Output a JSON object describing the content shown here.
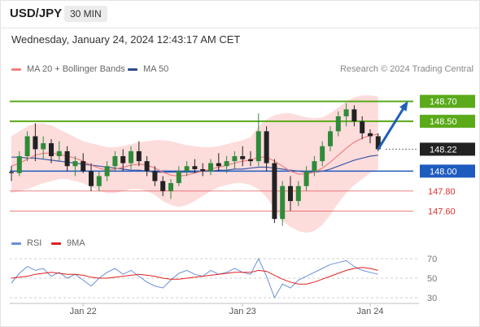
{
  "header": {
    "symbol": "USD/JPY",
    "timeframe": "30 MIN"
  },
  "datetime": "Wednesday, January 24, 2024 12:43:17 AM CET",
  "credit": "Research © 2024 Trading Central",
  "legend": {
    "ma20_label": "MA 20 + Bollinger Bands",
    "ma20_color": "#f08080",
    "ma50_label": "MA 50",
    "ma50_color": "#2e4a8c"
  },
  "rsi_legend": {
    "rsi_label": "RSI",
    "rsi_color": "#6a8fd8",
    "ma9_label": "9MA",
    "ma9_color": "#e02020"
  },
  "colors": {
    "resistance": "#5aaa1a",
    "support_primary": "#1e5bbf",
    "support_secondary": "#e03030",
    "bull_candle": "#2e8b3a",
    "bear_candle": "#222222",
    "bollinger_fill": "#fdd6d6",
    "arrow": "#2060b8",
    "current_price_bg": "#222222"
  },
  "chart_data": [
    {
      "type": "candlestick",
      "ylim": [
        147.35,
        148.95
      ],
      "x_ticks": [
        "Jan 22",
        "Jan 23",
        "Jan 24"
      ],
      "x_tick_index": [
        9,
        29,
        45
      ],
      "candles": [
        [
          147.99,
          148.05,
          147.9,
          147.98
        ],
        [
          147.98,
          148.2,
          147.95,
          148.15
        ],
        [
          148.15,
          148.4,
          148.1,
          148.35
        ],
        [
          148.35,
          148.48,
          148.1,
          148.22
        ],
        [
          148.22,
          148.35,
          148.12,
          148.28
        ],
        [
          148.28,
          148.32,
          148.08,
          148.15
        ],
        [
          148.15,
          148.3,
          148.1,
          148.2
        ],
        [
          148.2,
          148.25,
          148.0,
          148.05
        ],
        [
          148.05,
          148.15,
          147.95,
          148.1
        ],
        [
          148.1,
          148.18,
          147.98,
          148.0
        ],
        [
          148.0,
          148.08,
          147.8,
          147.85
        ],
        [
          147.85,
          148.0,
          147.8,
          147.95
        ],
        [
          147.95,
          148.1,
          147.9,
          148.05
        ],
        [
          148.05,
          148.2,
          148.0,
          148.15
        ],
        [
          148.15,
          148.22,
          148.0,
          148.08
        ],
        [
          148.08,
          148.25,
          148.02,
          148.2
        ],
        [
          148.2,
          148.3,
          148.05,
          148.1
        ],
        [
          148.1,
          148.15,
          147.95,
          148.0
        ],
        [
          148.0,
          148.05,
          147.85,
          147.9
        ],
        [
          147.9,
          147.95,
          147.75,
          147.8
        ],
        [
          147.8,
          147.92,
          147.72,
          147.88
        ],
        [
          147.88,
          148.05,
          147.85,
          148.0
        ],
        [
          148.0,
          148.1,
          147.95,
          148.05
        ],
        [
          148.05,
          148.12,
          147.98,
          148.02
        ],
        [
          148.02,
          148.08,
          147.95,
          148.0
        ],
        [
          148.0,
          148.12,
          147.96,
          148.08
        ],
        [
          148.08,
          148.18,
          148.0,
          148.05
        ],
        [
          148.05,
          148.15,
          147.98,
          148.1
        ],
        [
          148.1,
          148.2,
          148.02,
          148.15
        ],
        [
          148.15,
          148.25,
          148.05,
          148.12
        ],
        [
          148.12,
          148.2,
          148.05,
          148.1
        ],
        [
          148.1,
          148.58,
          148.05,
          148.4
        ],
        [
          148.4,
          148.45,
          148.0,
          148.08
        ],
        [
          148.08,
          148.12,
          147.48,
          147.52
        ],
        [
          147.52,
          147.9,
          147.45,
          147.85
        ],
        [
          147.85,
          147.95,
          147.6,
          147.7
        ],
        [
          147.7,
          147.9,
          147.65,
          147.85
        ],
        [
          147.85,
          148.05,
          147.8,
          148.0
        ],
        [
          148.0,
          148.15,
          147.95,
          148.1
        ],
        [
          148.1,
          148.3,
          148.05,
          148.25
        ],
        [
          148.25,
          148.45,
          148.2,
          148.4
        ],
        [
          148.4,
          148.6,
          148.35,
          148.55
        ],
        [
          148.55,
          148.68,
          148.45,
          148.62
        ],
        [
          148.62,
          148.66,
          148.45,
          148.5
        ],
        [
          148.5,
          148.55,
          148.32,
          148.38
        ],
        [
          148.38,
          148.42,
          148.28,
          148.35
        ],
        [
          148.35,
          148.38,
          148.2,
          148.22
        ]
      ],
      "ma20": [
        148.05,
        148.08,
        148.12,
        148.16,
        148.18,
        148.18,
        148.17,
        148.15,
        148.13,
        148.1,
        148.06,
        148.03,
        148.01,
        148.02,
        148.04,
        148.06,
        148.07,
        148.06,
        148.03,
        147.99,
        147.96,
        147.95,
        147.96,
        147.98,
        148.0,
        148.02,
        148.04,
        148.06,
        148.08,
        148.1,
        148.11,
        148.14,
        148.14,
        148.1,
        148.05,
        148.0,
        147.97,
        147.97,
        147.99,
        148.03,
        148.09,
        148.16,
        148.23,
        148.29,
        148.33,
        148.36,
        148.37
      ],
      "ma50": [
        148.14,
        148.14,
        148.13,
        148.13,
        148.12,
        148.11,
        148.1,
        148.09,
        148.08,
        148.07,
        148.06,
        148.05,
        148.04,
        148.03,
        148.02,
        148.01,
        148.01,
        148.0,
        147.99,
        147.99,
        147.99,
        147.99,
        147.99,
        147.99,
        148.0,
        148.0,
        148.01,
        148.01,
        148.02,
        148.02,
        148.03,
        148.04,
        148.04,
        148.03,
        148.02,
        148.01,
        148.0,
        147.99,
        147.99,
        148.0,
        148.02,
        148.05,
        148.08,
        148.11,
        148.13,
        148.15,
        148.16
      ],
      "bollinger_upper": [
        148.35,
        148.4,
        148.45,
        148.48,
        148.48,
        148.46,
        148.42,
        148.38,
        148.34,
        148.3,
        148.28,
        148.26,
        148.24,
        148.24,
        148.25,
        148.27,
        148.29,
        148.3,
        148.31,
        148.31,
        148.3,
        148.28,
        148.26,
        148.25,
        148.24,
        148.24,
        148.25,
        148.27,
        148.29,
        148.31,
        148.34,
        148.45,
        148.52,
        148.56,
        148.58,
        148.58,
        148.56,
        148.54,
        148.53,
        148.54,
        148.58,
        148.64,
        148.7,
        148.74,
        148.76,
        148.76,
        148.75
      ],
      "bollinger_lower": [
        147.78,
        147.8,
        147.82,
        147.85,
        147.88,
        147.9,
        147.92,
        147.92,
        147.9,
        147.88,
        147.84,
        147.8,
        147.78,
        147.78,
        147.8,
        147.82,
        147.82,
        147.8,
        147.76,
        147.7,
        147.66,
        147.64,
        147.66,
        147.7,
        147.75,
        147.8,
        147.84,
        147.86,
        147.88,
        147.88,
        147.86,
        147.82,
        147.74,
        147.62,
        147.5,
        147.44,
        147.4,
        147.38,
        147.4,
        147.46,
        147.56,
        147.68,
        147.78,
        147.86,
        147.92,
        147.98,
        148.02
      ],
      "levels": [
        {
          "label": "148.70",
          "value": 148.7,
          "kind": "resistance"
        },
        {
          "label": "148.50",
          "value": 148.5,
          "kind": "resistance"
        },
        {
          "label": "148.22",
          "value": 148.22,
          "kind": "current"
        },
        {
          "label": "148.00",
          "value": 148.0,
          "kind": "pivot"
        },
        {
          "label": "147.80",
          "value": 147.8,
          "kind": "support"
        },
        {
          "label": "147.60",
          "value": 147.6,
          "kind": "support"
        }
      ],
      "target_arrow": {
        "from_index": 46,
        "from_value": 148.22,
        "to_index": 50,
        "to_value": 148.7
      }
    },
    {
      "type": "line",
      "ylim": [
        25,
        75
      ],
      "y_ticks": [
        "70",
        "50",
        "30"
      ],
      "series": [
        {
          "name": "RSI",
          "values": [
            45,
            55,
            62,
            58,
            60,
            52,
            56,
            50,
            54,
            48,
            42,
            50,
            56,
            60,
            54,
            58,
            52,
            46,
            42,
            40,
            48,
            55,
            58,
            54,
            52,
            58,
            54,
            56,
            60,
            56,
            54,
            70,
            52,
            30,
            44,
            40,
            48,
            52,
            56,
            60,
            64,
            66,
            68,
            62,
            58,
            56,
            54
          ]
        },
        {
          "name": "9MA",
          "values": [
            50,
            51,
            52,
            54,
            55,
            56,
            55,
            54,
            54,
            53,
            51,
            50,
            50,
            51,
            52,
            53,
            54,
            53,
            52,
            50,
            49,
            49,
            50,
            51,
            52,
            53,
            54,
            55,
            56,
            56,
            56,
            58,
            57,
            53,
            49,
            46,
            44,
            44,
            46,
            49,
            52,
            55,
            58,
            60,
            61,
            60,
            58
          ]
        }
      ]
    }
  ]
}
